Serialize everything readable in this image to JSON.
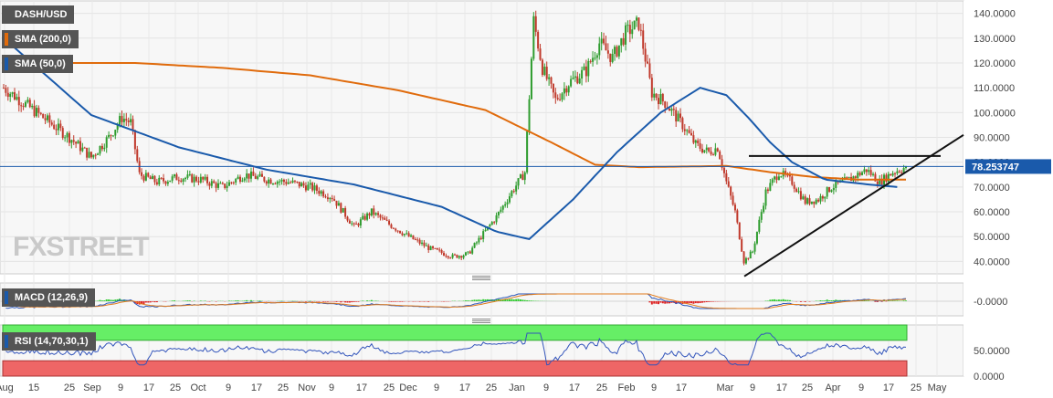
{
  "instrument": "DASH/USD",
  "indicators": {
    "sma200": "SMA (200,0)",
    "sma50": "SMA (50,0)",
    "macd": "MACD (12,26,9)",
    "rsi": "RSI (14,70,30,1)"
  },
  "colors": {
    "sma200": "#e06b0c",
    "sma50": "#1a5aab",
    "bull": "#2e9c2e",
    "bear": "#c0392b",
    "macd_pos": "#33cc33",
    "macd_neg": "#dd2222",
    "rsi_over": "#66ee66",
    "rsi_under": "#ee6666",
    "rsi_line": "#3355bb"
  },
  "watermark": "FXSTREET",
  "last_price_label": "78.253747",
  "chart_data": {
    "type": "candlestick",
    "price_axis": {
      "range": [
        35,
        145
      ],
      "ticks": [
        "140.0000",
        "130.0000",
        "120.0000",
        "110.0000",
        "100.0000",
        "90.0000",
        "80.0000",
        "70.0000",
        "60.0000",
        "50.0000",
        "40.0000"
      ]
    },
    "x_ticks": [
      "Aug",
      "15",
      "25",
      "Sep",
      "9",
      "17",
      "25",
      "Oct",
      "9",
      "17",
      "25",
      "Nov",
      "9",
      "17",
      "25",
      "Dec",
      "9",
      "17",
      "25",
      "Jan",
      "9",
      "17",
      "25",
      "Feb",
      "9",
      "17",
      "Mar",
      "9",
      "17",
      "25",
      "Apr",
      "9",
      "17",
      "25",
      "May"
    ],
    "last_price": 78.253747,
    "price_keyframes": [
      [
        0,
        110
      ],
      [
        15,
        100
      ],
      [
        30,
        90
      ],
      [
        40,
        82
      ],
      [
        48,
        90
      ],
      [
        54,
        98
      ],
      [
        58,
        96
      ],
      [
        62,
        75
      ],
      [
        70,
        72
      ],
      [
        80,
        74
      ],
      [
        90,
        73
      ],
      [
        100,
        70
      ],
      [
        110,
        75
      ],
      [
        120,
        73
      ],
      [
        130,
        72
      ],
      [
        140,
        70
      ],
      [
        150,
        66
      ],
      [
        160,
        54
      ],
      [
        168,
        60
      ],
      [
        176,
        55
      ],
      [
        185,
        50
      ],
      [
        195,
        45
      ],
      [
        205,
        42
      ],
      [
        212,
        43
      ],
      [
        218,
        50
      ],
      [
        225,
        58
      ],
      [
        232,
        68
      ],
      [
        238,
        76
      ],
      [
        242,
        137
      ],
      [
        246,
        118
      ],
      [
        252,
        105
      ],
      [
        258,
        112
      ],
      [
        266,
        117
      ],
      [
        272,
        128
      ],
      [
        278,
        122
      ],
      [
        284,
        132
      ],
      [
        290,
        136
      ],
      [
        296,
        108
      ],
      [
        302,
        104
      ],
      [
        310,
        95
      ],
      [
        316,
        87
      ],
      [
        322,
        84
      ],
      [
        326,
        86
      ],
      [
        330,
        72
      ],
      [
        334,
        60
      ],
      [
        338,
        40
      ],
      [
        342,
        44
      ],
      [
        348,
        68
      ],
      [
        354,
        76
      ],
      [
        360,
        72
      ],
      [
        366,
        64
      ],
      [
        372,
        65
      ],
      [
        378,
        70
      ],
      [
        386,
        73
      ],
      [
        394,
        77
      ],
      [
        400,
        72
      ],
      [
        406,
        76
      ],
      [
        412,
        78
      ]
    ],
    "sma200_keyframes": [
      [
        0,
        120
      ],
      [
        60,
        120
      ],
      [
        100,
        118
      ],
      [
        140,
        115
      ],
      [
        180,
        109
      ],
      [
        220,
        101
      ],
      [
        250,
        88
      ],
      [
        270,
        79
      ],
      [
        290,
        78
      ],
      [
        330,
        78.5
      ],
      [
        350,
        76
      ],
      [
        370,
        74
      ],
      [
        390,
        73
      ],
      [
        412,
        73
      ]
    ],
    "sma50_keyframes": [
      [
        0,
        130
      ],
      [
        40,
        99
      ],
      [
        80,
        86
      ],
      [
        120,
        77
      ],
      [
        160,
        71
      ],
      [
        200,
        62
      ],
      [
        225,
        52
      ],
      [
        240,
        49
      ],
      [
        260,
        65
      ],
      [
        280,
        84
      ],
      [
        300,
        100
      ],
      [
        318,
        110
      ],
      [
        330,
        107
      ],
      [
        340,
        98
      ],
      [
        350,
        88
      ],
      [
        360,
        80
      ],
      [
        375,
        73
      ],
      [
        395,
        71
      ],
      [
        408,
        70
      ]
    ],
    "trendlines": [
      {
        "name": "resistance",
        "from": [
          "Mar 9",
          82.5
        ],
        "to": [
          "May",
          82.5
        ]
      },
      {
        "name": "support",
        "from": [
          "Mar 9",
          34
        ],
        "to": [
          "May",
          90
        ]
      }
    ],
    "macd_axis": {
      "ticks": [
        "-0.0000"
      ]
    },
    "rsi_axis": {
      "ticks": [
        "50.0000",
        "0.0000"
      ],
      "levels": [
        70,
        30
      ]
    }
  }
}
